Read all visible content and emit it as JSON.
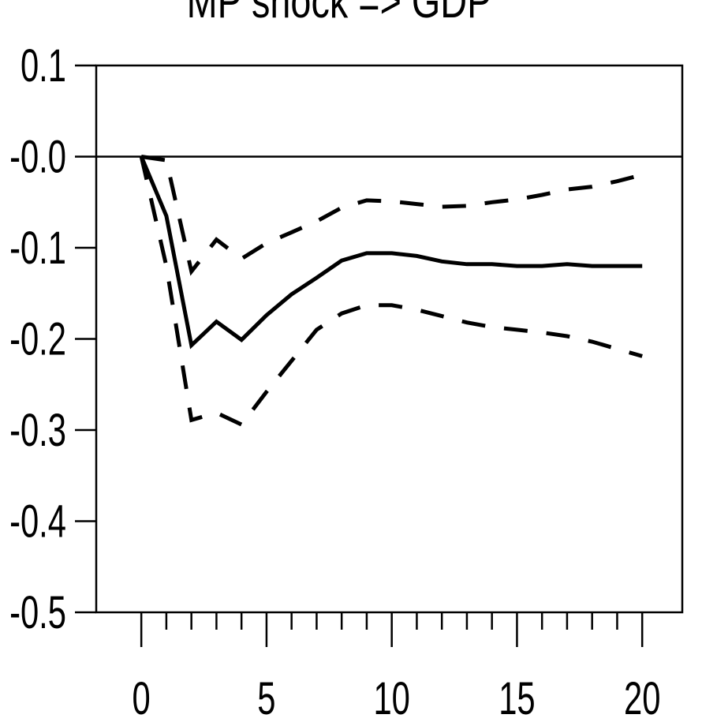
{
  "chart_data": {
    "type": "line",
    "title": "MP shock => GDP",
    "xlabel": "",
    "ylabel": "",
    "xlim": [
      -1.8,
      21.6
    ],
    "ylim": [
      -0.5,
      0.1
    ],
    "x_ticks_major": [
      0,
      5,
      10,
      15,
      20
    ],
    "x_tick_labels": [
      "0",
      "5",
      "10",
      "15",
      "20"
    ],
    "x_ticks_minor": [
      0,
      1,
      2,
      3,
      4,
      5,
      6,
      7,
      8,
      9,
      10,
      11,
      12,
      13,
      14,
      15,
      16,
      17,
      18,
      19,
      20
    ],
    "y_ticks": [
      0.1,
      0.0,
      -0.1,
      -0.2,
      -0.3,
      -0.4,
      -0.5
    ],
    "y_tick_labels": [
      "0.1",
      "-0.0",
      "-0.1",
      "-0.2",
      "-0.3",
      "-0.4",
      "-0.5"
    ],
    "zero_line": true,
    "grid": false,
    "x": [
      0,
      1,
      2,
      3,
      4,
      5,
      6,
      7,
      8,
      9,
      10,
      11,
      12,
      13,
      14,
      15,
      16,
      17,
      18,
      19,
      20
    ],
    "series": [
      {
        "style": "solid",
        "values": [
          0.0,
          -0.065,
          -0.207,
          -0.181,
          -0.201,
          -0.174,
          -0.151,
          -0.133,
          -0.114,
          -0.106,
          -0.106,
          -0.109,
          -0.115,
          -0.118,
          -0.118,
          -0.12,
          -0.12,
          -0.118,
          -0.12,
          -0.12,
          -0.12
        ]
      },
      {
        "style": "dashed",
        "values": [
          0.0,
          -0.004,
          -0.126,
          -0.091,
          -0.112,
          -0.095,
          -0.083,
          -0.071,
          -0.056,
          -0.048,
          -0.049,
          -0.052,
          -0.055,
          -0.054,
          -0.05,
          -0.047,
          -0.042,
          -0.036,
          -0.033,
          -0.027,
          -0.02
        ]
      },
      {
        "style": "dashed",
        "values": [
          0.0,
          -0.12,
          -0.289,
          -0.281,
          -0.294,
          -0.258,
          -0.224,
          -0.19,
          -0.172,
          -0.163,
          -0.163,
          -0.168,
          -0.175,
          -0.182,
          -0.187,
          -0.19,
          -0.193,
          -0.197,
          -0.203,
          -0.211,
          -0.219
        ]
      }
    ]
  }
}
